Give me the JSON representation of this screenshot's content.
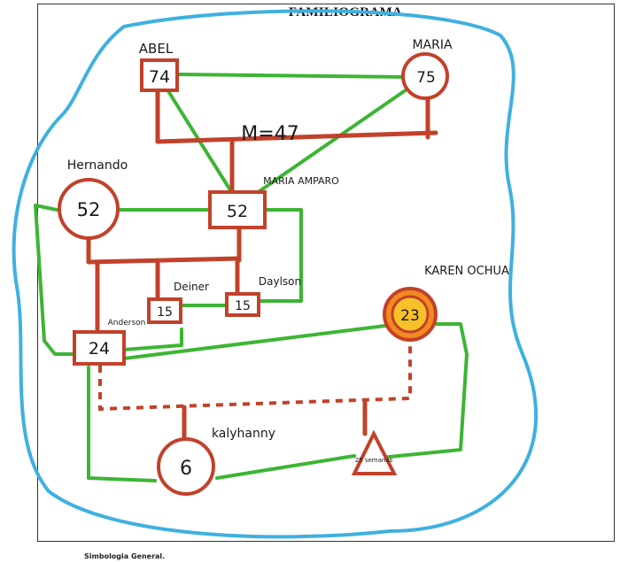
{
  "header": {
    "title": "FAMILIOGRAMA"
  },
  "footer": {
    "label": "Simbologia General."
  },
  "people": {
    "abel": {
      "name": "ABEL",
      "age": "74"
    },
    "maria": {
      "name": "MARIA",
      "age": "75"
    },
    "hernando": {
      "name": "Hernando",
      "age": "52"
    },
    "maria_amparo": {
      "name": "MARIA AMPARO",
      "age": "52"
    },
    "deiner": {
      "name": "Deiner",
      "age": "15"
    },
    "daylson": {
      "name": "Daylson",
      "age": "15"
    },
    "anderson": {
      "name": "Anderson",
      "age": "24"
    },
    "karen": {
      "name": "KAREN OCHUA",
      "age": "23"
    },
    "kalyhanny": {
      "name": "kalyhanny",
      "age": "6"
    },
    "pregnancy": {
      "label": "25 semanas"
    }
  },
  "union": {
    "label": "M=47"
  },
  "colors": {
    "kinship": "#c2412a",
    "close_bond": "#3cb534",
    "environment": "#3fb0e0",
    "index_fill": "#f6c12a",
    "index_ring": "#f28b1e"
  }
}
